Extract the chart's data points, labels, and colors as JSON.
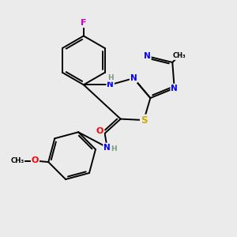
{
  "background_color": "#ebebeb",
  "atom_colors": {
    "C": "#000000",
    "N": "#0000ff",
    "O": "#ff0000",
    "S": "#ccaa00",
    "F": "#cc00cc",
    "H": "#7a9a7a"
  },
  "bond_color": "#000000",
  "lw": 1.4
}
